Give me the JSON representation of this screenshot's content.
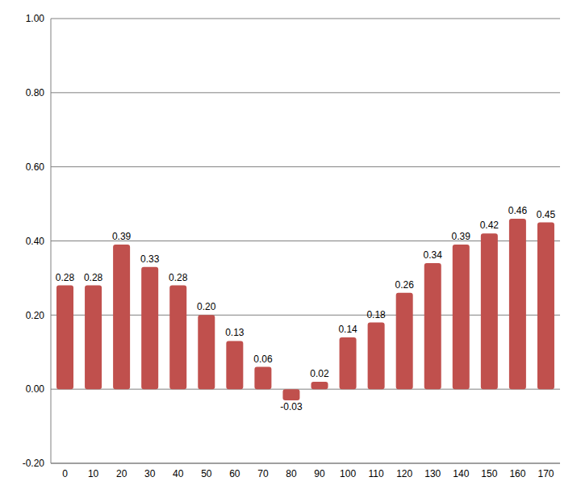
{
  "chart_data": {
    "type": "bar",
    "categories": [
      "0",
      "10",
      "20",
      "30",
      "40",
      "50",
      "60",
      "70",
      "80",
      "90",
      "100",
      "110",
      "120",
      "130",
      "140",
      "150",
      "160",
      "170"
    ],
    "values": [
      0.28,
      0.28,
      0.39,
      0.33,
      0.28,
      0.2,
      0.13,
      0.06,
      -0.03,
      0.02,
      0.14,
      0.18,
      0.26,
      0.34,
      0.39,
      0.42,
      0.46,
      0.45
    ],
    "value_labels": [
      "0.28",
      "0.28",
      "0.39",
      "0.33",
      "0.28",
      "0.20",
      "0.13",
      "0.06",
      "-0.03",
      "0.02",
      "0.14",
      "0.18",
      "0.26",
      "0.34",
      "0.39",
      "0.42",
      "0.46",
      "0.45"
    ],
    "color": "#c0504d",
    "ylim": [
      -0.2,
      1.0
    ],
    "yticks": [
      {
        "value": -0.2,
        "label": "-0.20"
      },
      {
        "value": 0,
        "label": "0.00"
      },
      {
        "value": 0.2,
        "label": "0.20"
      },
      {
        "value": 0.4,
        "label": "0.40"
      },
      {
        "value": 0.6,
        "label": "0.60"
      },
      {
        "value": 0.8,
        "label": "0.80"
      },
      {
        "value": 1.0,
        "label": "1.00"
      }
    ],
    "grid": true,
    "data_labels": true
  }
}
